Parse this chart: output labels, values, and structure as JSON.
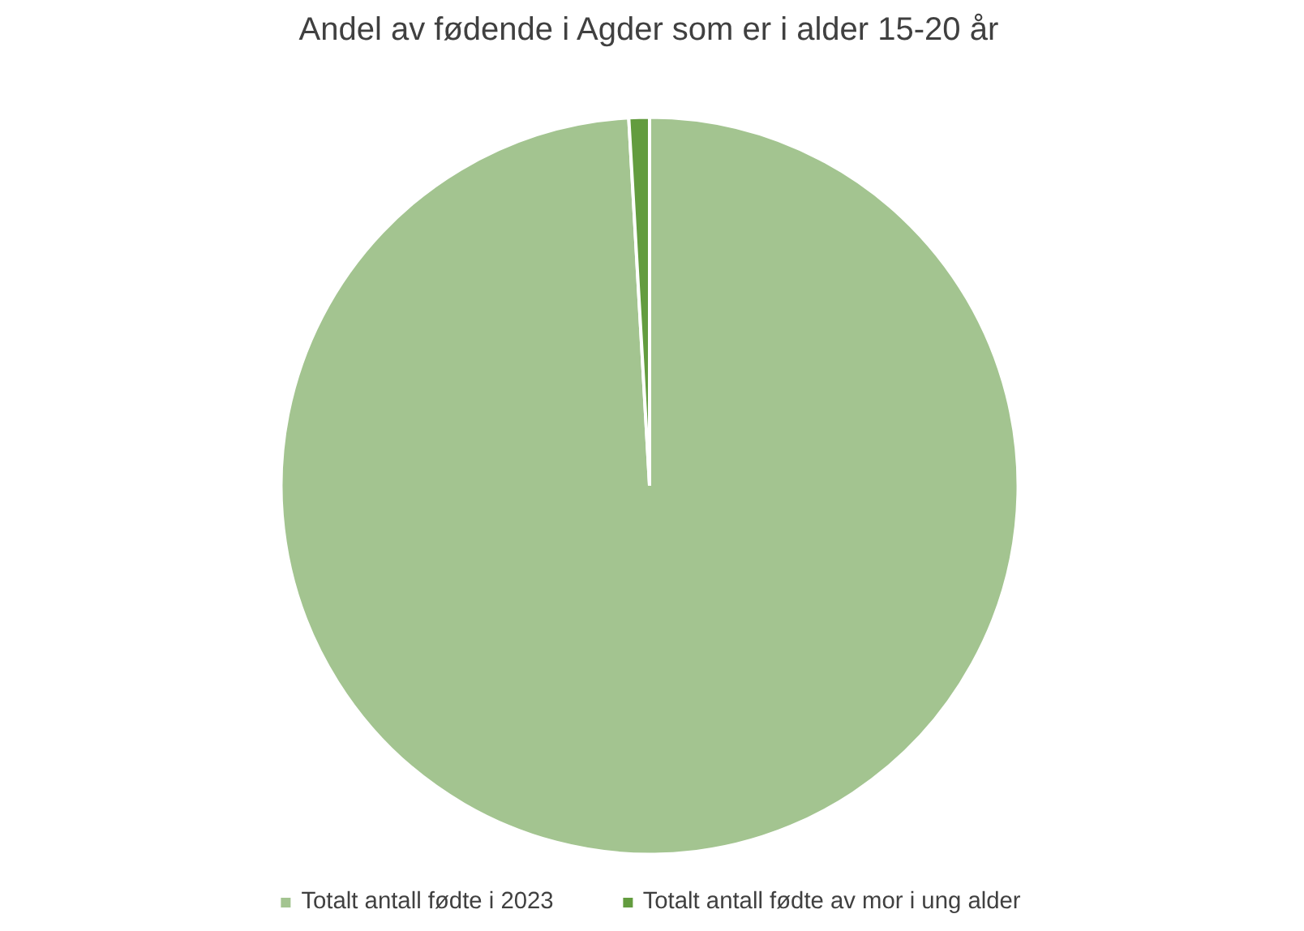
{
  "chart_data": {
    "type": "pie",
    "title": "Andel av fødende i Agder som er i alder 15-20 år",
    "categories": [
      "Totalt antall fødte i 2023",
      "Totalt antall fødte av mor i ung alder"
    ],
    "values": [
      99.1,
      0.9
    ],
    "colors": [
      "#a3c490",
      "#639c3f"
    ],
    "legend": "bottom"
  }
}
